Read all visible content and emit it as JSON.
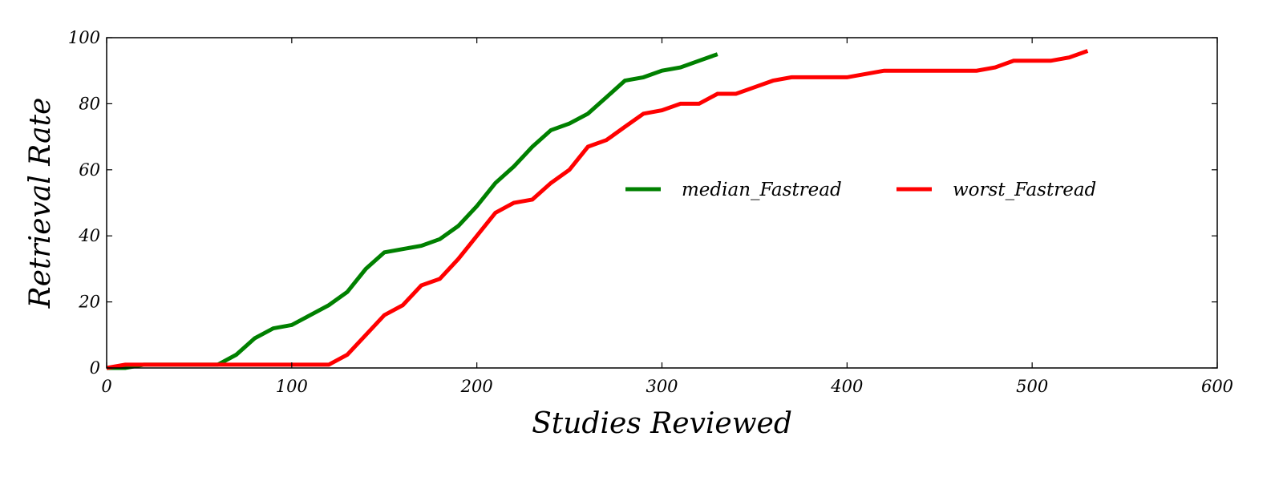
{
  "chart_data": {
    "type": "line",
    "xlabel": "Studies Reviewed",
    "ylabel": "Retrieval Rate",
    "xlim": [
      0,
      600
    ],
    "ylim": [
      0,
      100
    ],
    "xticks": [
      0,
      100,
      200,
      300,
      400,
      500,
      600
    ],
    "yticks": [
      0,
      20,
      40,
      60,
      80,
      100
    ],
    "grid": false,
    "legend_position": "center-right",
    "series": [
      {
        "name": "median_Fastread",
        "color": "#008000",
        "x": [
          0,
          10,
          20,
          30,
          40,
          50,
          60,
          70,
          80,
          90,
          100,
          110,
          120,
          130,
          140,
          150,
          160,
          170,
          180,
          190,
          200,
          210,
          220,
          230,
          240,
          250,
          260,
          270,
          280,
          290,
          300,
          310,
          320,
          330
        ],
        "y": [
          0,
          0,
          1,
          1,
          1,
          1,
          1,
          4,
          9,
          12,
          13,
          16,
          19,
          23,
          30,
          35,
          36,
          37,
          39,
          43,
          49,
          56,
          61,
          67,
          72,
          74,
          77,
          82,
          87,
          88,
          90,
          91,
          93,
          95
        ]
      },
      {
        "name": "worst_Fastread",
        "color": "#ff0000",
        "x": [
          0,
          10,
          20,
          30,
          40,
          50,
          60,
          70,
          80,
          90,
          100,
          110,
          120,
          130,
          140,
          150,
          160,
          170,
          180,
          190,
          200,
          210,
          220,
          230,
          240,
          250,
          260,
          270,
          280,
          290,
          300,
          310,
          320,
          330,
          340,
          350,
          360,
          370,
          380,
          390,
          400,
          410,
          420,
          430,
          440,
          450,
          460,
          470,
          480,
          490,
          500,
          510,
          520,
          530
        ],
        "y": [
          0,
          1,
          1,
          1,
          1,
          1,
          1,
          1,
          1,
          1,
          1,
          1,
          1,
          4,
          10,
          16,
          19,
          25,
          27,
          33,
          40,
          47,
          50,
          51,
          56,
          60,
          67,
          69,
          73,
          77,
          78,
          80,
          80,
          83,
          83,
          85,
          87,
          88,
          88,
          88,
          88,
          89,
          90,
          90,
          90,
          90,
          90,
          90,
          91,
          93,
          93,
          93,
          94,
          96
        ]
      }
    ]
  }
}
